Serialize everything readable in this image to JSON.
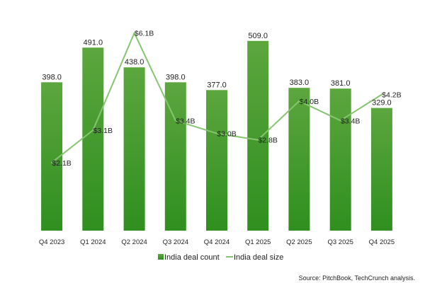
{
  "chart_data": {
    "type": "bar",
    "categories": [
      "Q4 2023",
      "Q1 2024",
      "Q2 2024",
      "Q3 2024",
      "Q4 2024",
      "Q1 2025",
      "Q2 2025",
      "Q3 2025",
      "Q4 2025"
    ],
    "series": [
      {
        "name": "India deal count",
        "type": "bar",
        "values": [
          398.0,
          491.0,
          438.0,
          398.0,
          377.0,
          509.0,
          383.0,
          381.0,
          329.0
        ],
        "labels": [
          "398.0",
          "491.0",
          "438.0",
          "398.0",
          "377.0",
          "509.0",
          "383.0",
          "381.0",
          "329.0"
        ],
        "color": "#4f9f38"
      },
      {
        "name": "India deal size",
        "type": "line",
        "values": [
          2.1,
          3.1,
          6.1,
          3.4,
          3.0,
          2.8,
          4.0,
          3.4,
          4.2
        ],
        "labels": [
          "$2.1B",
          "$3.1B",
          "$6.1B",
          "$3.4B",
          "$3.0B",
          "$2.8B",
          "$4.0B",
          "$3.4B",
          "$4.2B"
        ],
        "color": "#86c56f"
      }
    ],
    "axes": {
      "count_range": [
        0,
        520
      ],
      "size_range": [
        0,
        6.2
      ]
    },
    "grid": false,
    "legend_position": "bottom"
  },
  "source": "Source: PitchBook, TechCrunch analysis."
}
